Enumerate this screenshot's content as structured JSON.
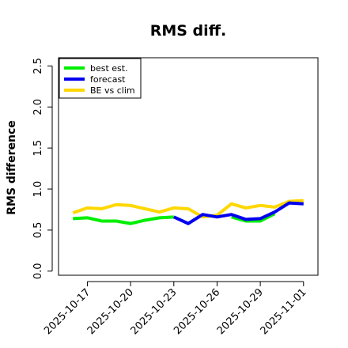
{
  "chart_data": {
    "type": "line",
    "title": "RMS diff.",
    "xlabel": "",
    "ylabel": "RMS difference",
    "ylim": [
      -0.05,
      2.6
    ],
    "xlim": [
      "2025-10-15",
      "2025-11-02"
    ],
    "grid": false,
    "legend_position": "top-left",
    "y_ticks": [
      "0.0",
      "0.5",
      "1.0",
      "1.5",
      "2.0",
      "2.5"
    ],
    "x_ticks": [
      "2025-10-17",
      "2025-10-20",
      "2025-10-23",
      "2025-10-26",
      "2025-10-29",
      "2025-11-01"
    ],
    "highlighted_x_tick": "2025-10-23",
    "x": [
      "2025-10-16",
      "2025-10-17",
      "2025-10-18",
      "2025-10-19",
      "2025-10-20",
      "2025-10-21",
      "2025-10-22",
      "2025-10-23",
      "2025-10-24",
      "2025-10-25",
      "2025-10-26",
      "2025-10-27",
      "2025-10-28",
      "2025-10-29",
      "2025-10-30",
      "2025-10-31",
      "2025-11-01"
    ],
    "series": [
      {
        "name": "best est.",
        "color": "#00ee00",
        "values": [
          0.64,
          0.65,
          0.61,
          0.61,
          0.58,
          0.62,
          0.65,
          0.66,
          null,
          null,
          null,
          0.66,
          0.61,
          0.61,
          0.7,
          null,
          null
        ]
      },
      {
        "name": "forecast",
        "color": "#0000ee",
        "values": [
          null,
          null,
          null,
          null,
          null,
          null,
          null,
          0.66,
          0.58,
          0.69,
          0.66,
          0.69,
          0.63,
          0.64,
          0.72,
          0.83,
          0.82
        ]
      },
      {
        "name": "BE vs clim",
        "color": "#ffd700",
        "values": [
          0.71,
          0.77,
          0.76,
          0.81,
          0.8,
          0.76,
          0.72,
          0.77,
          0.76,
          0.66,
          0.68,
          0.82,
          0.77,
          0.8,
          0.78,
          0.85,
          0.86
        ]
      }
    ]
  }
}
